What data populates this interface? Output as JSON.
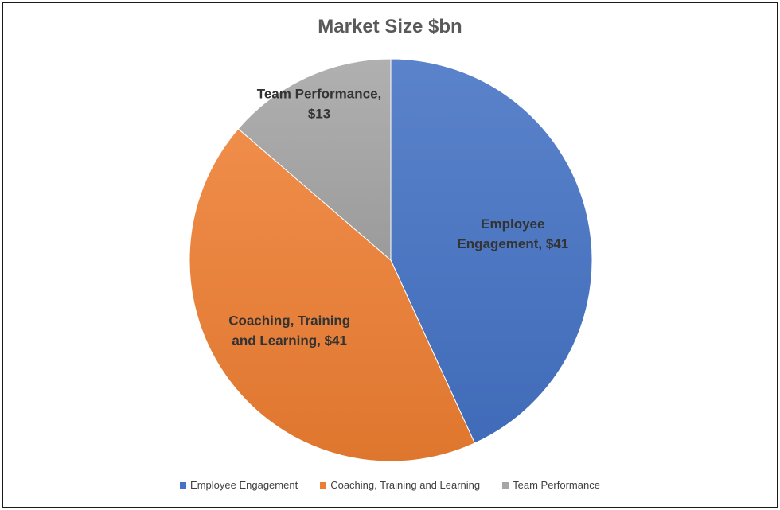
{
  "chart_data": {
    "type": "pie",
    "title": "Market Size $bn",
    "slices": [
      {
        "name": "Employee Engagement",
        "value": 41,
        "label_lines": [
          "Employee",
          "Engagement,  $41"
        ],
        "color": "#4472C4"
      },
      {
        "name": "Coaching, Training and Learning",
        "value": 41,
        "label_lines": [
          "Coaching, Training",
          "and Learning,  $41"
        ],
        "color": "#ED7D31"
      },
      {
        "name": "Team Performance",
        "value": 13,
        "label_lines": [
          "Team Performance,",
          "$13"
        ],
        "color": "#A5A5A5"
      }
    ],
    "legend_position": "bottom"
  }
}
